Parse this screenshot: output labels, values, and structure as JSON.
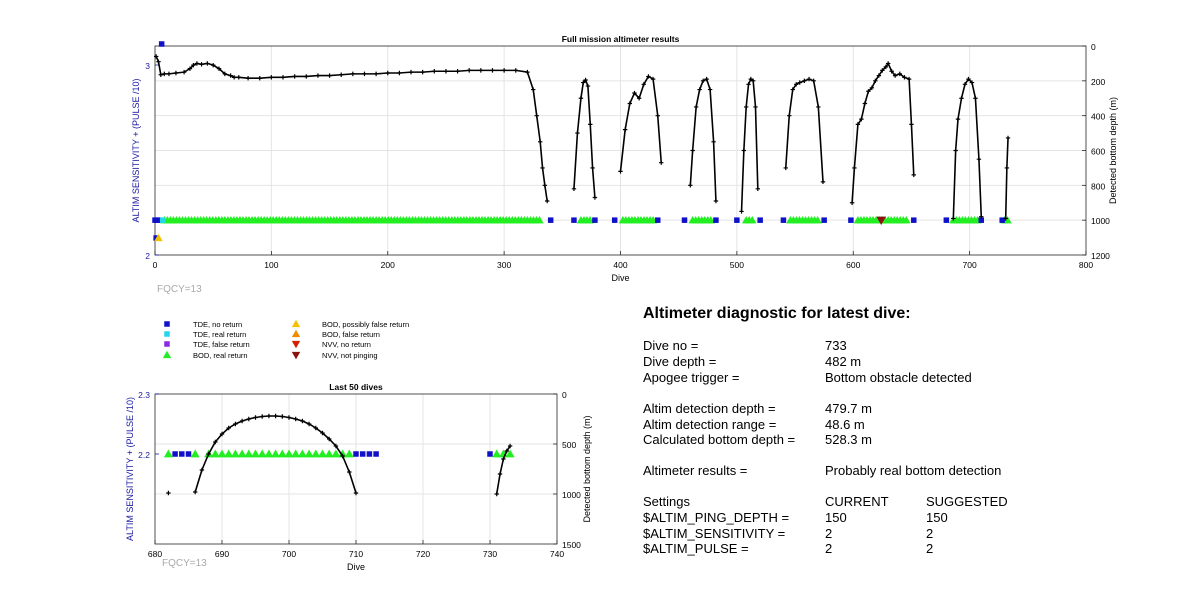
{
  "colors": {
    "tde_no_return": "#1010c8",
    "tde_real_return": "#22d8e8",
    "tde_false_return": "#8a2be2",
    "bod_real_return": "#22ee22",
    "bod_possibly_false": "#f2c200",
    "bod_false_return": "#f08c00",
    "nvv_no_return": "#d02000",
    "nvv_not_pinging": "#8b1010",
    "depth_line": "#000000",
    "left_axis": "#1a1aa0",
    "fqcy_text": "#aaaaaa"
  },
  "fqcy_label": "FQCY=13",
  "legend": [
    {
      "label": "TDE, no return",
      "marker": "square",
      "color_key": "tde_no_return"
    },
    {
      "label": "TDE, real return",
      "marker": "square",
      "color_key": "tde_real_return"
    },
    {
      "label": "TDE, false return",
      "marker": "square",
      "color_key": "tde_false_return"
    },
    {
      "label": "BOD, real return",
      "marker": "triangle-up",
      "color_key": "bod_real_return"
    },
    {
      "label": "BOD, possibly false return",
      "marker": "triangle-up",
      "color_key": "bod_possibly_false"
    },
    {
      "label": "BOD, false return",
      "marker": "triangle-up",
      "color_key": "bod_false_return"
    },
    {
      "label": "NVV, no return",
      "marker": "triangle-down",
      "color_key": "nvv_no_return"
    },
    {
      "label": "NVV, not pinging",
      "marker": "triangle-down",
      "color_key": "nvv_not_pinging"
    }
  ],
  "chart_data": [
    {
      "type": "scatter",
      "title": "Full mission altimeter results",
      "xlabel": "Dive",
      "ylabel_left": "ALTIM SENSITIVITY + (PULSE /10)",
      "ylabel_right": "Detected bottom depth (m)",
      "xlim": [
        0,
        800
      ],
      "xticks": [
        0,
        100,
        200,
        300,
        400,
        500,
        600,
        700,
        800
      ],
      "ylim_left": [
        2,
        3.1
      ],
      "yticks_left": [
        2,
        3
      ],
      "ylim_right": [
        0,
        1200
      ],
      "right_reversed": true,
      "yticks_right": [
        0,
        200,
        400,
        600,
        800,
        1000,
        1200
      ],
      "grid": true,
      "depth_series": {
        "name": "Detected bottom depth",
        "x": [
          1,
          3,
          5,
          8,
          12,
          18,
          25,
          30,
          33,
          36,
          40,
          45,
          50,
          55,
          60,
          65,
          68,
          72,
          80,
          90,
          100,
          110,
          120,
          130,
          140,
          150,
          160,
          170,
          180,
          190,
          200,
          210,
          220,
          230,
          240,
          250,
          260,
          270,
          280,
          290,
          300,
          310,
          320,
          325,
          328,
          331,
          333,
          335,
          337
        ],
        "y": [
          60,
          90,
          165,
          160,
          160,
          155,
          150,
          130,
          110,
          100,
          105,
          100,
          110,
          130,
          160,
          170,
          180,
          180,
          185,
          185,
          180,
          180,
          175,
          175,
          170,
          170,
          165,
          160,
          160,
          160,
          155,
          155,
          150,
          150,
          145,
          145,
          145,
          140,
          140,
          140,
          140,
          140,
          150,
          250,
          400,
          550,
          700,
          800,
          890
        ]
      },
      "dive_arcs": [
        {
          "x": [
            360,
            363,
            366,
            368,
            370,
            372,
            374,
            376,
            378
          ],
          "y": [
            820,
            500,
            300,
            210,
            195,
            230,
            450,
            700,
            870
          ]
        },
        {
          "x": [
            400,
            404,
            408,
            412,
            416,
            420,
            424,
            428,
            432,
            435
          ],
          "y": [
            720,
            480,
            330,
            270,
            300,
            220,
            175,
            190,
            400,
            670
          ]
        },
        {
          "x": [
            460,
            462,
            465,
            468,
            471,
            474,
            477,
            480,
            482
          ],
          "y": [
            800,
            600,
            350,
            250,
            200,
            190,
            250,
            550,
            890
          ]
        },
        {
          "x": [
            504,
            506,
            508,
            510,
            512,
            514,
            516,
            518
          ],
          "y": [
            950,
            600,
            350,
            220,
            190,
            200,
            350,
            820
          ]
        },
        {
          "x": [
            542,
            545,
            548,
            551,
            554,
            558,
            562,
            566,
            570,
            574
          ],
          "y": [
            700,
            400,
            250,
            220,
            210,
            200,
            190,
            200,
            350,
            780
          ]
        },
        {
          "x": [
            599,
            601,
            604,
            607,
            610,
            613,
            616,
            619,
            622,
            625,
            628,
            630,
            633,
            636,
            640,
            644,
            648,
            650,
            652
          ],
          "y": [
            900,
            700,
            450,
            420,
            330,
            260,
            240,
            200,
            170,
            140,
            120,
            100,
            145,
            170,
            160,
            180,
            190,
            450,
            740
          ]
        },
        {
          "x": [
            686,
            688,
            690,
            693,
            696,
            699,
            702,
            705,
            708,
            710
          ],
          "y": [
            990,
            600,
            420,
            300,
            220,
            190,
            210,
            300,
            650,
            980
          ]
        },
        {
          "x": [
            731,
            732,
            733
          ],
          "y": [
            990,
            700,
            528
          ]
        }
      ],
      "sensitivity_markers": {
        "left_value": 2.2,
        "bod_real_runs": [
          [
            8,
            332
          ],
          [
            366,
            376
          ],
          [
            402,
            430
          ],
          [
            462,
            478
          ],
          [
            508,
            514
          ],
          [
            546,
            570
          ],
          [
            604,
            648
          ],
          [
            686,
            708
          ],
          [
            730,
            733
          ]
        ],
        "tde_no_return_x": [
          0,
          2,
          3,
          340,
          360,
          378,
          395,
          432,
          455,
          482,
          500,
          520,
          540,
          575,
          598,
          652,
          680,
          710,
          728
        ],
        "tde_no_return_high": [
          {
            "x": 4,
            "y": 3.1
          }
        ],
        "tde_real_return_x": [
          4
        ],
        "nvv_not_pinging_x": [
          624
        ],
        "bod_possibly_false_points": [
          {
            "x": 3,
            "y": 2.1
          }
        ],
        "tde_no_return_low": [
          {
            "x": 1,
            "y": 2.1
          }
        ]
      }
    },
    {
      "type": "scatter",
      "title": "Last 50 dives",
      "xlabel": "Dive",
      "ylabel_left": "ALTIM SENSITIVITY + (PULSE /10)",
      "ylabel_right": "Detected bottom depth (m)",
      "xlim": [
        680,
        740
      ],
      "xticks": [
        680,
        690,
        700,
        710,
        720,
        730,
        740
      ],
      "ylim_left": [
        2.05,
        2.3
      ],
      "yticks_left": [
        2.2,
        2.3
      ],
      "ylim_right": [
        0,
        1500
      ],
      "right_reversed": true,
      "yticks_right": [
        0,
        500,
        1000,
        1500
      ],
      "grid": true,
      "depth_series": {
        "name": "Detected bottom depth",
        "x": [
          686,
          687,
          688,
          689,
          690,
          691,
          692,
          693,
          694,
          695,
          696,
          697,
          698,
          699,
          700,
          701,
          702,
          703,
          704,
          705,
          706,
          707,
          708,
          709,
          710
        ],
        "y": [
          980,
          760,
          600,
          480,
          400,
          340,
          300,
          270,
          250,
          235,
          225,
          220,
          220,
          225,
          235,
          250,
          270,
          300,
          340,
          390,
          450,
          520,
          620,
          780,
          990
        ]
      },
      "isolated_depth_points": [
        {
          "x": 682,
          "y": 990
        }
      ],
      "last_dive_segment": {
        "x": [
          731,
          731.5,
          732,
          732.5,
          733
        ],
        "y": [
          1000,
          800,
          650,
          570,
          520
        ]
      },
      "sensitivity_markers": {
        "left_value": 2.2,
        "bod_real_x": [
          682,
          686,
          688,
          689,
          690,
          691,
          692,
          693,
          694,
          695,
          696,
          697,
          698,
          699,
          700,
          701,
          702,
          703,
          704,
          705,
          706,
          707,
          708,
          709,
          731,
          732,
          733
        ],
        "tde_no_return_x": [
          683,
          684,
          685,
          710,
          711,
          712,
          713,
          730
        ]
      }
    }
  ],
  "diagnostic": {
    "title": "Altimeter diagnostic for latest dive:",
    "dive_no_label": "Dive no =",
    "dive_no_value": "733",
    "dive_depth_label": "Dive depth =",
    "dive_depth_value": "482 m",
    "apogee_label": "Apogee trigger =",
    "apogee_value": "Bottom obstacle detected",
    "altim_depth_label": "Altim detection depth =",
    "altim_depth_value": "479.7 m",
    "altim_range_label": "Altim detection range =",
    "altim_range_value": "48.6 m",
    "calc_depth_label": "Calculated bottom depth =",
    "calc_depth_value": "528.3 m",
    "results_label": "Altimeter results =",
    "results_value": "Probably real bottom detection",
    "settings_label": "Settings",
    "current_label": "CURRENT",
    "suggested_label": "SUGGESTED",
    "settings": [
      {
        "name": "$ALTIM_PING_DEPTH =",
        "current": "150",
        "suggested": "150"
      },
      {
        "name": "$ALTIM_SENSITIVITY =",
        "current": "2",
        "suggested": "2"
      },
      {
        "name": "$ALTIM_PULSE =",
        "current": "2",
        "suggested": "2"
      }
    ]
  }
}
